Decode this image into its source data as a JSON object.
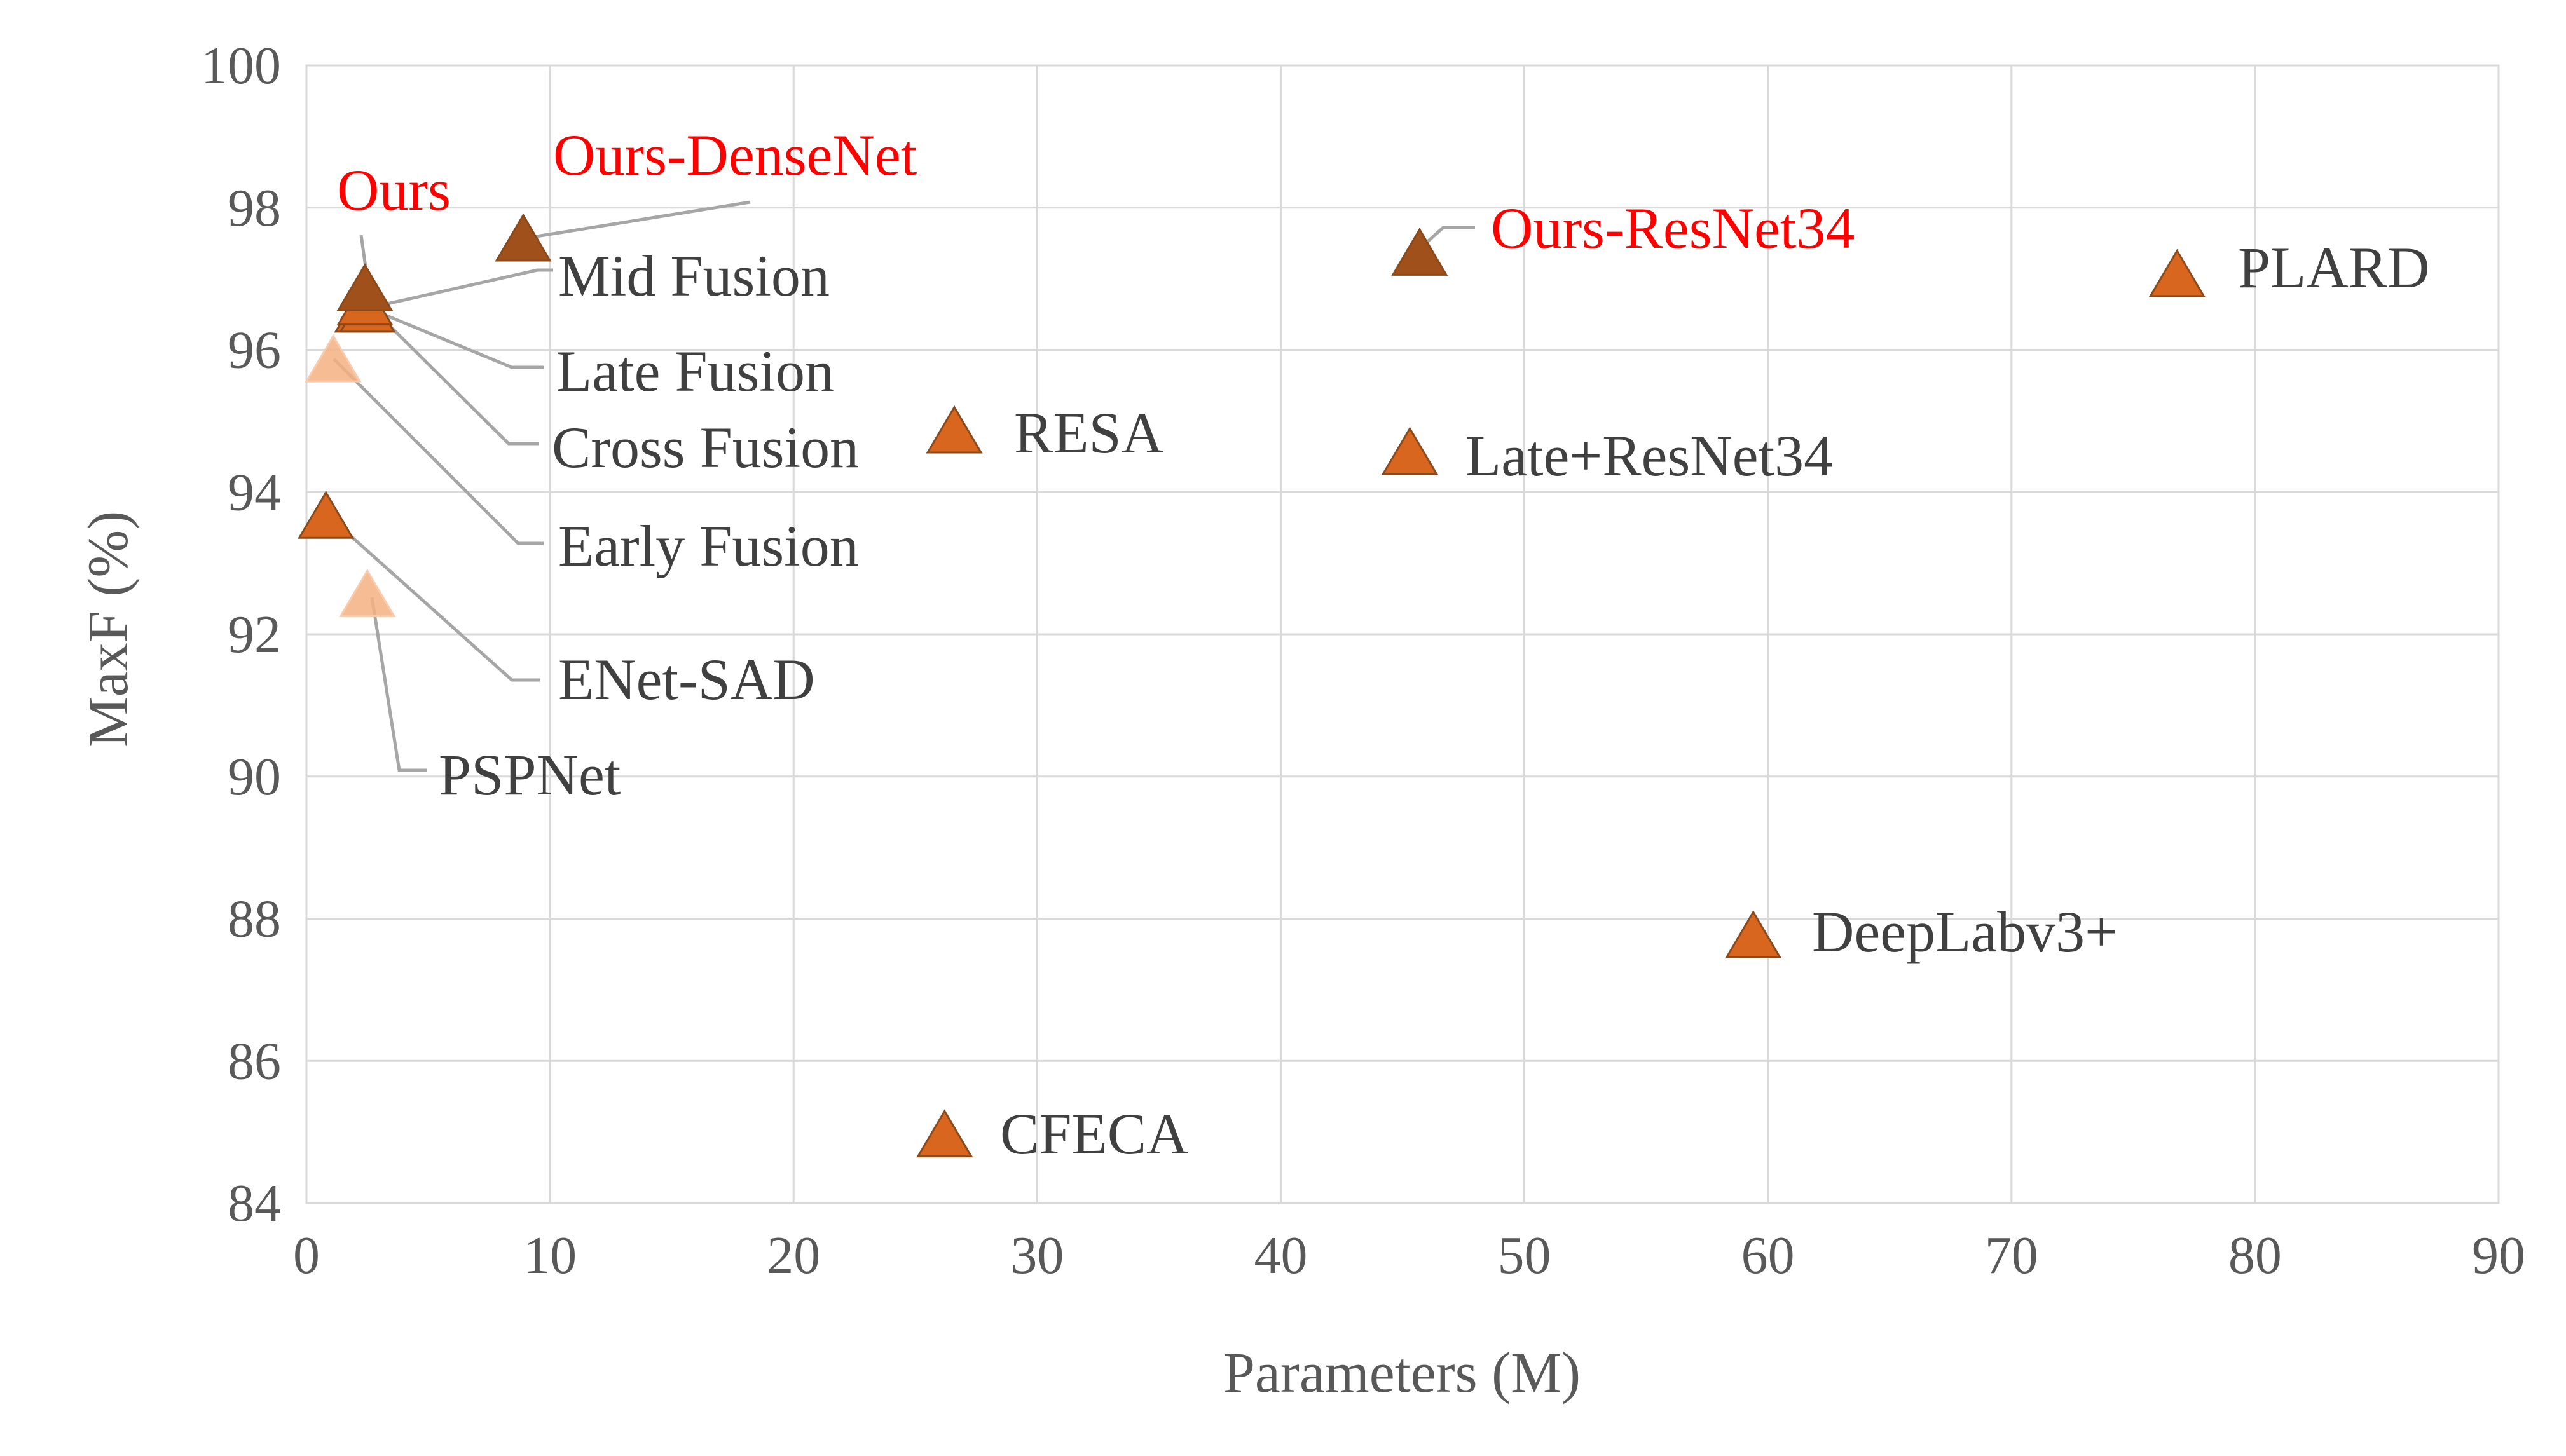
{
  "chart_data": {
    "type": "scatter",
    "title": "",
    "xlabel": "Parameters (M)",
    "ylabel": "MaxF (%)",
    "xlim": [
      0,
      90
    ],
    "ylim": [
      84,
      100
    ],
    "x_ticks": [
      0,
      10,
      20,
      30,
      40,
      50,
      60,
      70,
      80,
      90
    ],
    "y_ticks": [
      84,
      86,
      88,
      90,
      92,
      94,
      96,
      98,
      100
    ],
    "grid": true,
    "legend": "none",
    "marker": "triangle",
    "colors": {
      "text": "#404040",
      "highlight_text": "#ff0000",
      "marker_dark": "#a0501a",
      "marker_mid": "#d8661f",
      "marker_light": "#f4b183",
      "grid": "#d9d9d9",
      "leader": "#a6a6a6"
    },
    "points": [
      {
        "label": "Ours",
        "x": 2.4,
        "y": 96.8,
        "highlight": true,
        "shade": "dark"
      },
      {
        "label": "Ours-DenseNet",
        "x": 8.9,
        "y": 97.5,
        "highlight": true,
        "shade": "dark"
      },
      {
        "label": "Ours-ResNet34",
        "x": 45.7,
        "y": 97.3,
        "highlight": true,
        "shade": "dark"
      },
      {
        "label": "Mid Fusion",
        "x": 2.4,
        "y": 96.6,
        "highlight": false,
        "shade": "mid"
      },
      {
        "label": "Late Fusion",
        "x": 2.5,
        "y": 96.5,
        "highlight": false,
        "shade": "mid"
      },
      {
        "label": "Cross Fusion",
        "x": 2.3,
        "y": 96.5,
        "highlight": false,
        "shade": "mid"
      },
      {
        "label": "Early Fusion",
        "x": 1.1,
        "y": 95.8,
        "highlight": false,
        "shade": "light"
      },
      {
        "label": "ENet-SAD",
        "x": 0.8,
        "y": 93.6,
        "highlight": false,
        "shade": "mid"
      },
      {
        "label": "PSPNet",
        "x": 2.5,
        "y": 92.5,
        "highlight": false,
        "shade": "light"
      },
      {
        "label": "RESA",
        "x": 26.6,
        "y": 94.8,
        "highlight": false,
        "shade": "mid"
      },
      {
        "label": "Late+ResNet34",
        "x": 45.3,
        "y": 94.5,
        "highlight": false,
        "shade": "mid"
      },
      {
        "label": "PLARD",
        "x": 76.8,
        "y": 97.0,
        "highlight": false,
        "shade": "mid"
      },
      {
        "label": "DeepLabv3+",
        "x": 59.4,
        "y": 87.7,
        "highlight": false,
        "shade": "mid"
      },
      {
        "label": "CFECA",
        "x": 26.2,
        "y": 84.9,
        "highlight": false,
        "shade": "mid"
      }
    ]
  }
}
